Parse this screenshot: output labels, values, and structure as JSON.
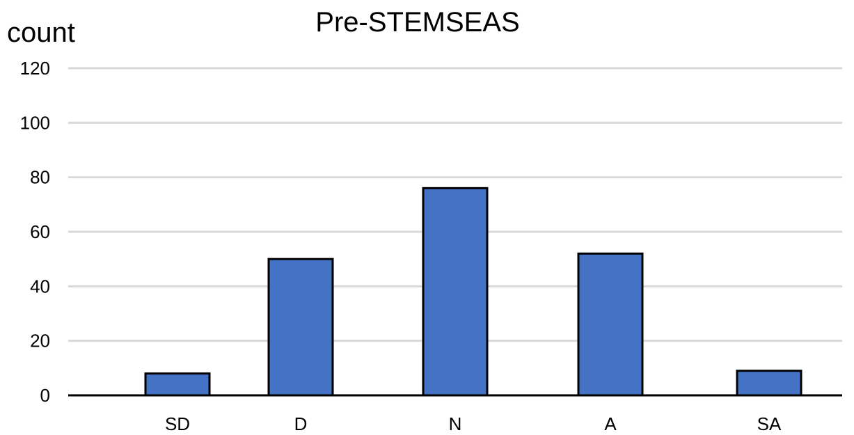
{
  "chart_data": {
    "type": "bar",
    "title": "Pre-STEMSEAS",
    "xlabel": "",
    "ylabel": "count",
    "categories": [
      "SD",
      "D",
      "N",
      "A",
      "SA"
    ],
    "values": [
      8,
      50,
      76,
      52,
      9
    ],
    "ylim": [
      0,
      120
    ],
    "yticks": [
      0,
      20,
      40,
      60,
      80,
      100,
      120
    ],
    "grid": true,
    "legend": "none",
    "bar_color": "#4472C4",
    "grid_color": "#d9d9d9"
  }
}
